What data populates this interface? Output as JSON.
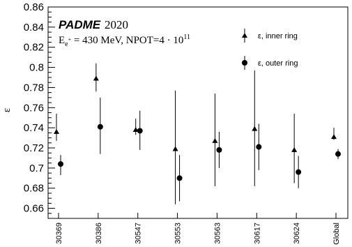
{
  "chart_data": {
    "type": "scatter",
    "title": "",
    "ylabel": "ε",
    "xlabel": "",
    "ylim": [
      0.65,
      0.86
    ],
    "yticks": [
      0.66,
      0.68,
      0.7,
      0.72,
      0.74,
      0.76,
      0.78,
      0.8,
      0.82,
      0.84,
      0.86
    ],
    "categories": [
      "30369",
      "30386",
      "30547",
      "30553",
      "30563",
      "30617",
      "30624",
      "Global"
    ],
    "legend_position": "top-right",
    "annotation": {
      "experiment": "PADME",
      "year": "2020",
      "beam_info": "E_{e+} = 430 MeV, NPOT=4 · 10^11"
    },
    "series": [
      {
        "name": "ε, inner ring",
        "marker": "triangle",
        "color": "#000000",
        "values": [
          0.736,
          0.789,
          0.738,
          0.719,
          0.727,
          0.739,
          0.718,
          0.731
        ],
        "err_low": [
          0.727,
          0.776,
          0.733,
          0.664,
          0.682,
          0.682,
          0.685,
          0.728
        ],
        "err_high": [
          0.754,
          0.804,
          0.749,
          0.777,
          0.774,
          0.797,
          0.754,
          0.74
        ]
      },
      {
        "name": "ε, outer ring",
        "marker": "circle",
        "color": "#000000",
        "values": [
          0.704,
          0.741,
          0.737,
          0.69,
          0.718,
          0.721,
          0.696,
          0.714
        ],
        "err_low": [
          0.693,
          0.714,
          0.718,
          0.667,
          0.7,
          0.698,
          0.68,
          0.709
        ],
        "err_high": [
          0.713,
          0.77,
          0.757,
          0.713,
          0.736,
          0.744,
          0.712,
          0.719
        ]
      }
    ]
  }
}
